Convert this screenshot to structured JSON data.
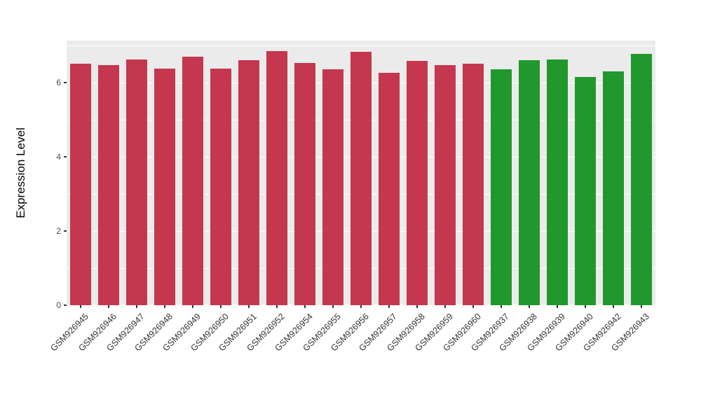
{
  "chart_data": {
    "type": "bar",
    "title": "",
    "xlabel": "",
    "ylabel": "Expression Level",
    "ylim": [
      0,
      7.13
    ],
    "yticks": [
      0,
      2,
      4,
      6
    ],
    "minor_gridlines": [
      1,
      3,
      5,
      7
    ],
    "panel_bg": "#EBEBEB",
    "grid_color": "#FFFFFF",
    "legend": "none",
    "categories": [
      "GSM926945",
      "GSM926946",
      "GSM926947",
      "GSM926948",
      "GSM926949",
      "GSM926950",
      "GSM926951",
      "GSM926952",
      "GSM926954",
      "GSM926955",
      "GSM926956",
      "GSM926957",
      "GSM926958",
      "GSM926959",
      "GSM926960",
      "GSM926937",
      "GSM926938",
      "GSM926939",
      "GSM926940",
      "GSM926942",
      "GSM926943"
    ],
    "values": [
      6.5,
      6.47,
      6.62,
      6.38,
      6.7,
      6.38,
      6.6,
      6.85,
      6.53,
      6.36,
      6.82,
      6.27,
      6.58,
      6.47,
      6.5,
      6.36,
      6.6,
      6.63,
      6.15,
      6.3,
      6.78
    ],
    "bar_colors": [
      "#C4374F",
      "#C4374F",
      "#C4374F",
      "#C4374F",
      "#C4374F",
      "#C4374F",
      "#C4374F",
      "#C4374F",
      "#C4374F",
      "#C4374F",
      "#C4374F",
      "#C4374F",
      "#C4374F",
      "#C4374F",
      "#C4374F",
      "#20982C",
      "#20982C",
      "#20982C",
      "#20982C",
      "#20982C",
      "#20982C"
    ]
  }
}
